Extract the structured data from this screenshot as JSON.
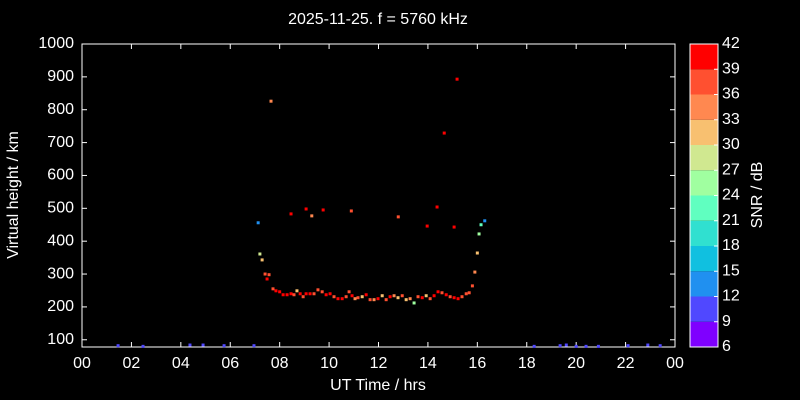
{
  "chart_data": {
    "type": "scatter",
    "title": "2025-11-25. f = 5760 kHz",
    "xlabel": "UT Time / hrs",
    "ylabel": "Virtual height / km",
    "xlim": [
      0,
      24
    ],
    "ylim": [
      78,
      1000
    ],
    "xticks": [
      {
        "value": 0,
        "label": "00"
      },
      {
        "value": 2,
        "label": "02"
      },
      {
        "value": 4,
        "label": "04"
      },
      {
        "value": 6,
        "label": "06"
      },
      {
        "value": 8,
        "label": "08"
      },
      10,
      12,
      14,
      16,
      18,
      20,
      22,
      {
        "value": 24,
        "label": "00"
      }
    ],
    "yticks": [
      100,
      200,
      300,
      400,
      500,
      600,
      700,
      800,
      900,
      1000
    ],
    "colorbar": {
      "label": "SNR / dB",
      "ticks": [
        6,
        9,
        12,
        15,
        18,
        21,
        24,
        27,
        30,
        33,
        36,
        39,
        42
      ],
      "colors": [
        "#7f00ff",
        "#5048ff",
        "#2090f0",
        "#10c0e0",
        "#30e0d0",
        "#60ffc0",
        "#a0ffa0",
        "#d0e890",
        "#f8c070",
        "#ff8850",
        "#ff5030",
        "#ff0000"
      ]
    },
    "x": [
      1.46,
      2.47,
      4.37,
      4.9,
      5.75,
      6.96,
      18.3,
      19.35,
      19.6,
      20.0,
      20.4,
      20.9,
      22.1,
      22.9,
      23.4,
      7.13,
      7.2,
      7.29,
      7.41,
      7.49,
      7.57,
      7.65,
      7.73,
      7.85,
      8.0,
      8.14,
      8.3,
      8.46,
      8.58,
      8.7,
      8.83,
      8.95,
      9.07,
      9.23,
      9.39,
      9.55,
      9.72,
      9.88,
      10.04,
      10.2,
      10.36,
      10.53,
      10.69,
      10.81,
      10.93,
      11.05,
      11.17,
      11.34,
      11.5,
      11.66,
      11.82,
      11.98,
      12.15,
      12.31,
      12.47,
      12.63,
      12.79,
      12.96,
      13.12,
      13.28,
      13.44,
      13.6,
      13.77,
      13.93,
      14.09,
      14.25,
      14.41,
      14.57,
      14.74,
      14.9,
      15.06,
      15.22,
      15.38,
      15.55,
      15.67,
      15.8,
      15.9,
      16.0,
      16.07,
      16.15,
      16.3,
      8.46,
      9.07,
      9.3,
      9.76,
      10.9,
      12.8,
      13.97,
      14.37,
      14.66,
      15.06,
      15.18
    ],
    "values": [
      82,
      80,
      84,
      84,
      82,
      82,
      80,
      82,
      84,
      80,
      80,
      80,
      82,
      84,
      82,
      456,
      361,
      343,
      300,
      285,
      298,
      826,
      255,
      249,
      246,
      237,
      237,
      240,
      237,
      249,
      240,
      231,
      240,
      240,
      240,
      252,
      246,
      237,
      240,
      231,
      225,
      225,
      231,
      246,
      234,
      225,
      228,
      231,
      237,
      222,
      222,
      225,
      234,
      222,
      231,
      234,
      228,
      234,
      222,
      225,
      212,
      231,
      228,
      234,
      225,
      234,
      246,
      243,
      237,
      231,
      228,
      225,
      231,
      240,
      243,
      264,
      306,
      364,
      422,
      450,
      462,
      483,
      498,
      477,
      495,
      492,
      474,
      446,
      504,
      729,
      443,
      893
    ],
    "snr": [
      10,
      10,
      10,
      10,
      10,
      10,
      10,
      10,
      10,
      10,
      10,
      10,
      10,
      10,
      10,
      13,
      28,
      31,
      37,
      40,
      38,
      35,
      38,
      40,
      40,
      40,
      40,
      40,
      38,
      32,
      40,
      38,
      40,
      40,
      38,
      37,
      38,
      40,
      40,
      38,
      40,
      40,
      38,
      37,
      40,
      34,
      38,
      31,
      40,
      38,
      34,
      40,
      32,
      38,
      40,
      34,
      30,
      38,
      32,
      34,
      26,
      38,
      40,
      32,
      38,
      40,
      40,
      38,
      40,
      38,
      40,
      40,
      37,
      38,
      38,
      38,
      33,
      31,
      26,
      22,
      13,
      40,
      40,
      35,
      40,
      38,
      38,
      40,
      40,
      40,
      40,
      40
    ]
  }
}
